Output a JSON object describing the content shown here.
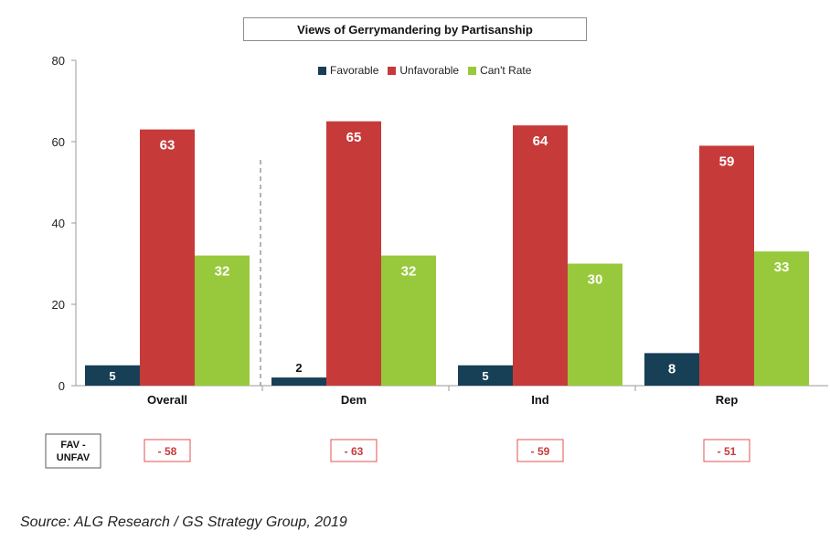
{
  "chart_data": {
    "type": "bar",
    "title": "Views of Gerrymandering by Partisanship",
    "categories": [
      "Overall",
      "Dem",
      "Ind",
      "Rep"
    ],
    "series": [
      {
        "name": "Favorable",
        "color": "#173f55",
        "values": [
          5,
          2,
          5,
          8
        ]
      },
      {
        "name": "Unfavorable",
        "color": "#c63b3a",
        "values": [
          63,
          65,
          64,
          59
        ]
      },
      {
        "name": "Can't Rate",
        "color": "#98c93c",
        "values": [
          32,
          32,
          30,
          33
        ]
      }
    ],
    "ylim": [
      0,
      80
    ],
    "yticks": [
      0,
      20,
      40,
      60,
      80
    ],
    "xlabel": "",
    "ylabel": "",
    "legend": "top-center",
    "net_row": {
      "label_line1": "FAV -",
      "label_line2": "UNFAV",
      "values": [
        "- 58",
        "- 63",
        "- 59",
        "- 51"
      ]
    }
  },
  "source": "Source: ALG Research / GS Strategy Group, 2019"
}
